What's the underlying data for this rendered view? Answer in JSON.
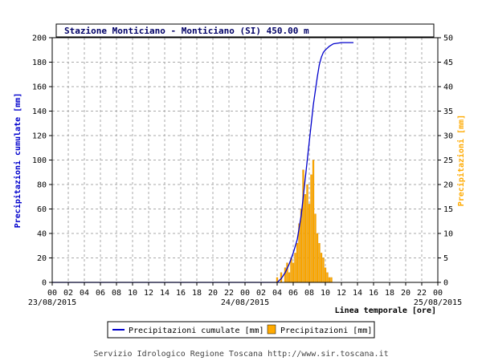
{
  "chart_data": {
    "type": "line",
    "title": "Stazione Monticiano - Monticiano (SI) 450.00 m",
    "xlabel": "Linea temporale [ore]",
    "ylabel_left": "Precipitazioni cumulate [mm]",
    "ylabel_right": "Precipitazioni [mm]",
    "hour_ticks": [
      "00",
      "02",
      "04",
      "06",
      "08",
      "10",
      "12",
      "14",
      "16",
      "18",
      "20",
      "22",
      "00",
      "02",
      "04",
      "06",
      "08",
      "10",
      "12",
      "14",
      "16",
      "18",
      "20",
      "22",
      "00"
    ],
    "date_labels": [
      {
        "hour": 0,
        "label": "23/08/2015"
      },
      {
        "hour": 24,
        "label": "24/08/2015"
      },
      {
        "hour": 48,
        "label": "25/08/2015"
      }
    ],
    "xlim": [
      0,
      48
    ],
    "ylim_left": [
      0,
      200
    ],
    "ylim_right": [
      0,
      50
    ],
    "yticks_left": [
      0,
      20,
      40,
      60,
      80,
      100,
      120,
      140,
      160,
      180,
      200
    ],
    "yticks_right": [
      0,
      5,
      10,
      15,
      20,
      25,
      30,
      35,
      40,
      45,
      50
    ],
    "grid": true,
    "legend_position": "bottom-center",
    "series": [
      {
        "name": "Precipitazioni cumulate [mm]",
        "type": "line",
        "axis": "left",
        "color": "#0000cc",
        "x": [
          0,
          28.0,
          28.5,
          29.0,
          29.5,
          30.0,
          30.5,
          31.0,
          31.5,
          32.0,
          32.5,
          33.0,
          33.25,
          33.5,
          33.75,
          34.0,
          34.5,
          35.0,
          35.5,
          36.0,
          37.5
        ],
        "y": [
          0,
          0,
          3,
          8,
          15,
          24,
          35,
          55,
          85,
          115,
          145,
          168,
          178,
          184,
          188,
          190,
          193,
          195,
          195.5,
          196,
          196
        ]
      },
      {
        "name": "Precipitazioni [mm]",
        "type": "bar",
        "axis": "right",
        "color": "#ffaa00",
        "x": [
          28.0,
          28.5,
          29.0,
          29.25,
          29.5,
          29.75,
          30.0,
          30.25,
          30.5,
          30.75,
          31.0,
          31.25,
          31.5,
          31.75,
          32.0,
          32.25,
          32.5,
          32.75,
          33.0,
          33.25,
          33.5,
          33.75,
          34.0,
          34.25,
          34.5,
          34.75
        ],
        "y": [
          1,
          2,
          3,
          4,
          2,
          5,
          4,
          6,
          8,
          12,
          15,
          23,
          18,
          20,
          16,
          22,
          25,
          14,
          10,
          8,
          6,
          5,
          3,
          2,
          1,
          1
        ]
      }
    ]
  },
  "footer": "Servizio Idrologico Regione Toscana http://www.sir.toscana.it"
}
